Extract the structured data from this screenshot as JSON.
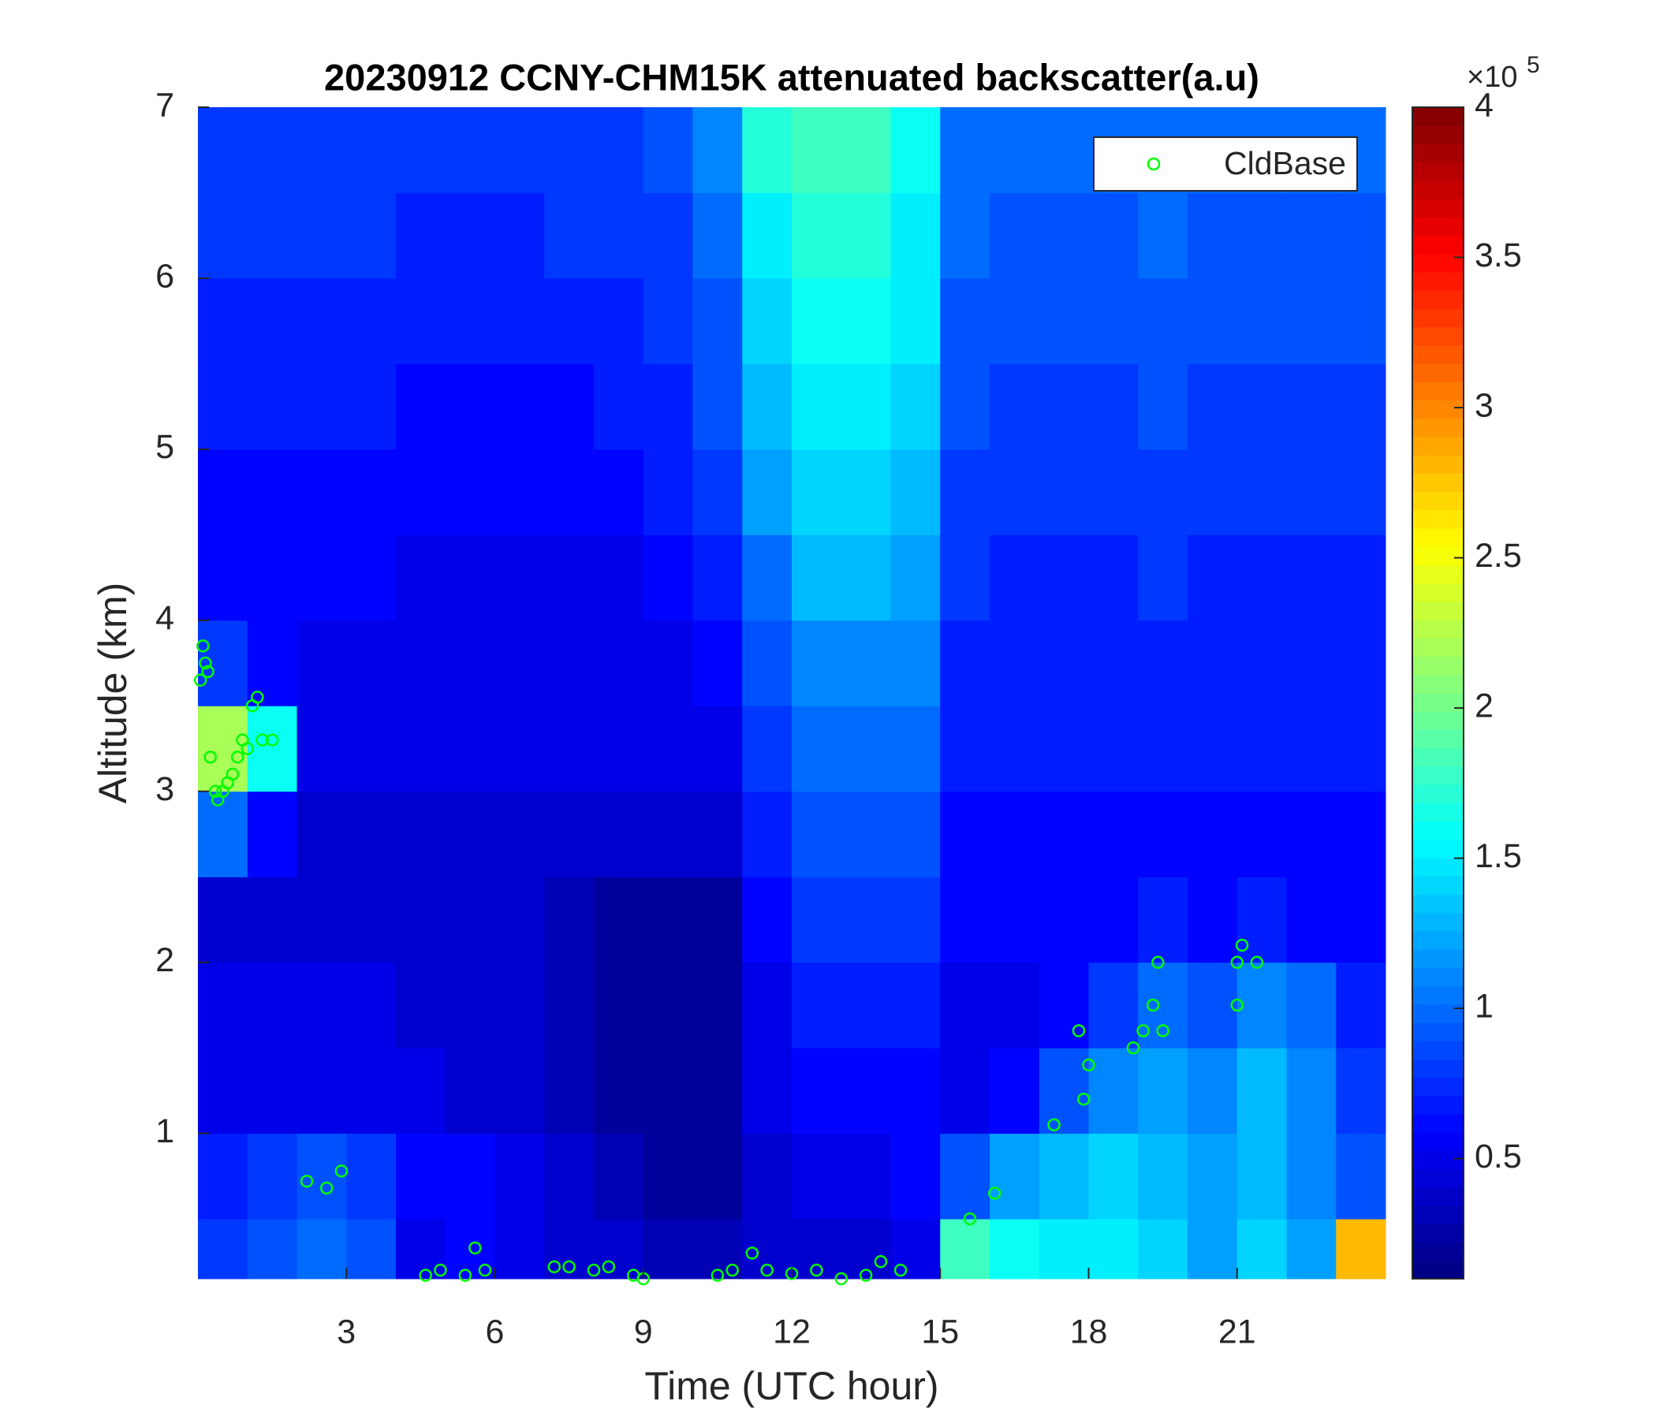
{
  "chart_data": {
    "type": "heatmap",
    "title": "20230912 CCNY-CHM15K attenuated backscatter(a.u)",
    "xlabel": "Time (UTC hour)",
    "ylabel": "Altitude (km)",
    "xlim": [
      0,
      24
    ],
    "xticks": [
      3,
      6,
      9,
      12,
      15,
      18,
      21
    ],
    "ylim": [
      0.15,
      7
    ],
    "yticks": [
      1,
      2,
      3,
      4,
      5,
      6,
      7
    ],
    "x_edges": [
      0,
      1,
      2,
      3,
      4,
      5,
      6,
      7,
      8,
      9,
      10,
      11,
      12,
      13,
      14,
      15,
      16,
      17,
      18,
      19,
      20,
      21,
      22,
      23,
      24
    ],
    "y_edges": [
      0.15,
      0.5,
      1,
      1.5,
      2,
      2.5,
      3,
      3.5,
      4,
      4.5,
      5,
      5.5,
      6,
      6.5,
      7
    ],
    "z": [
      [
        0.8,
        0.9,
        1.0,
        0.9,
        0.5,
        0.6,
        0.5,
        0.4,
        0.4,
        0.3,
        0.3,
        0.4,
        0.4,
        0.4,
        0.5,
        1.8,
        1.6,
        1.5,
        1.5,
        1.4,
        1.2,
        1.4,
        1.2,
        2.8
      ],
      [
        0.7,
        0.8,
        0.9,
        0.8,
        0.6,
        0.6,
        0.5,
        0.4,
        0.3,
        0.2,
        0.2,
        0.4,
        0.5,
        0.5,
        0.6,
        0.9,
        1.2,
        1.3,
        1.4,
        1.3,
        1.2,
        1.3,
        1.1,
        0.9
      ],
      [
        0.5,
        0.5,
        0.5,
        0.5,
        0.5,
        0.4,
        0.4,
        0.3,
        0.2,
        0.2,
        0.2,
        0.5,
        0.6,
        0.6,
        0.6,
        0.5,
        0.6,
        0.9,
        1.1,
        1.2,
        1.1,
        1.3,
        1.1,
        0.8
      ],
      [
        0.5,
        0.5,
        0.5,
        0.5,
        0.4,
        0.4,
        0.4,
        0.3,
        0.2,
        0.2,
        0.2,
        0.5,
        0.7,
        0.7,
        0.7,
        0.5,
        0.5,
        0.6,
        0.8,
        1.0,
        0.9,
        1.1,
        1.0,
        0.7
      ],
      [
        0.4,
        0.4,
        0.4,
        0.4,
        0.4,
        0.4,
        0.4,
        0.3,
        0.2,
        0.2,
        0.2,
        0.6,
        0.8,
        0.8,
        0.8,
        0.6,
        0.6,
        0.6,
        0.6,
        0.7,
        0.6,
        0.7,
        0.6,
        0.6
      ],
      [
        1.0,
        0.6,
        0.4,
        0.4,
        0.4,
        0.4,
        0.4,
        0.4,
        0.4,
        0.4,
        0.4,
        0.7,
        0.9,
        0.9,
        0.9,
        0.6,
        0.6,
        0.6,
        0.6,
        0.6,
        0.6,
        0.6,
        0.6,
        0.6
      ],
      [
        2.2,
        1.6,
        0.5,
        0.5,
        0.5,
        0.5,
        0.5,
        0.5,
        0.5,
        0.5,
        0.5,
        0.8,
        1.0,
        1.0,
        1.0,
        0.7,
        0.7,
        0.7,
        0.7,
        0.7,
        0.7,
        0.7,
        0.7,
        0.7
      ],
      [
        0.8,
        0.6,
        0.5,
        0.5,
        0.5,
        0.5,
        0.5,
        0.5,
        0.5,
        0.5,
        0.6,
        0.9,
        1.1,
        1.1,
        1.1,
        0.7,
        0.7,
        0.7,
        0.7,
        0.7,
        0.7,
        0.7,
        0.7,
        0.7
      ],
      [
        0.6,
        0.6,
        0.6,
        0.6,
        0.5,
        0.5,
        0.5,
        0.5,
        0.5,
        0.6,
        0.7,
        1.0,
        1.3,
        1.3,
        1.2,
        0.8,
        0.7,
        0.7,
        0.7,
        0.8,
        0.7,
        0.7,
        0.7,
        0.7
      ],
      [
        0.6,
        0.6,
        0.6,
        0.6,
        0.6,
        0.6,
        0.6,
        0.6,
        0.6,
        0.7,
        0.8,
        1.2,
        1.4,
        1.4,
        1.3,
        0.8,
        0.8,
        0.8,
        0.8,
        0.8,
        0.8,
        0.8,
        0.8,
        0.8
      ],
      [
        0.7,
        0.7,
        0.7,
        0.7,
        0.6,
        0.6,
        0.6,
        0.6,
        0.7,
        0.7,
        0.9,
        1.3,
        1.5,
        1.5,
        1.4,
        0.9,
        0.8,
        0.8,
        0.8,
        0.9,
        0.8,
        0.8,
        0.8,
        0.8
      ],
      [
        0.7,
        0.7,
        0.7,
        0.7,
        0.7,
        0.7,
        0.7,
        0.7,
        0.7,
        0.8,
        0.9,
        1.4,
        1.6,
        1.6,
        1.5,
        0.9,
        0.9,
        0.9,
        0.9,
        0.9,
        0.9,
        0.9,
        0.9,
        0.9
      ],
      [
        0.8,
        0.8,
        0.8,
        0.8,
        0.7,
        0.7,
        0.7,
        0.8,
        0.8,
        0.8,
        1.0,
        1.5,
        1.7,
        1.7,
        1.5,
        1.0,
        0.9,
        0.9,
        0.9,
        1.0,
        0.9,
        0.9,
        0.9,
        0.9
      ],
      [
        0.8,
        0.8,
        0.8,
        0.8,
        0.8,
        0.8,
        0.8,
        0.8,
        0.8,
        0.9,
        1.1,
        1.7,
        1.8,
        1.8,
        1.6,
        1.0,
        1.0,
        1.0,
        1.0,
        1.0,
        1.0,
        1.0,
        1.0,
        1.0
      ]
    ],
    "colormap": "jet",
    "clim": [
      0.1,
      4
    ],
    "cticks": [
      0.5,
      1,
      1.5,
      2,
      2.5,
      3,
      3.5,
      4
    ],
    "cbar_multiplier": "×10",
    "cbar_exponent": "5",
    "legend": "upper right",
    "series": [
      {
        "name": "CldBase",
        "type": "scatter",
        "color": "#00ff00",
        "x": [
          0.05,
          0.1,
          0.15,
          0.2,
          0.25,
          0.35,
          0.4,
          0.5,
          0.6,
          0.7,
          0.8,
          0.9,
          1.0,
          1.1,
          1.2,
          1.3,
          1.5,
          2.2,
          2.6,
          2.9,
          4.6,
          4.9,
          5.4,
          5.6,
          5.8,
          7.2,
          7.5,
          8.0,
          8.3,
          8.8,
          9.0,
          10.5,
          10.8,
          11.2,
          11.5,
          12.0,
          12.5,
          13.0,
          13.5,
          13.8,
          14.2,
          15.6,
          16.1,
          17.3,
          17.8,
          17.9,
          18.0,
          18.9,
          19.1,
          19.3,
          19.4,
          19.5,
          21.0,
          21.0,
          21.1,
          21.4
        ],
        "y": [
          3.65,
          3.85,
          3.75,
          3.7,
          3.2,
          3.0,
          2.95,
          3.0,
          3.05,
          3.1,
          3.2,
          3.3,
          3.25,
          3.5,
          3.55,
          3.3,
          3.3,
          0.72,
          0.68,
          0.78,
          0.17,
          0.2,
          0.17,
          0.33,
          0.2,
          0.22,
          0.22,
          0.2,
          0.22,
          0.17,
          0.15,
          0.17,
          0.2,
          0.3,
          0.2,
          0.18,
          0.2,
          0.15,
          0.17,
          0.25,
          0.2,
          0.5,
          0.65,
          1.05,
          1.6,
          1.2,
          1.4,
          1.5,
          1.6,
          1.75,
          2.0,
          1.6,
          2.0,
          1.75,
          2.1,
          2.0
        ]
      }
    ]
  }
}
